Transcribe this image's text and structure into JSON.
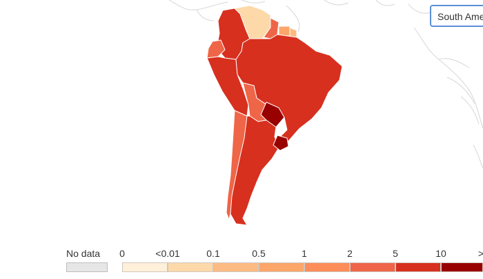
{
  "region_selector": {
    "value": "South America"
  },
  "legend": {
    "no_data_label": "No data",
    "no_data_color": "#e6e6e6",
    "ticks": [
      "0",
      "<0.01",
      "0.1",
      "0.5",
      "1",
      "2",
      "5",
      "10",
      ">"
    ],
    "colors": [
      "#fef0d9",
      "#fdd9a9",
      "#fdbb84",
      "#fca66a",
      "#fc8d59",
      "#ef6548",
      "#d7301f",
      "#990000"
    ]
  },
  "country_colors": {
    "background": "#ffffff",
    "ocean_lines": "#d9d9d9",
    "default": "#d7301f",
    "venezuela": "#fdd9a9",
    "suriname": "#fca66a",
    "french_guiana": "#fdbb84",
    "guyana": "#ef6548",
    "ecuador": "#ef6548",
    "bolivia": "#ef6548",
    "chile": "#ef6548",
    "paraguay": "#990000",
    "uruguay": "#990000"
  }
}
